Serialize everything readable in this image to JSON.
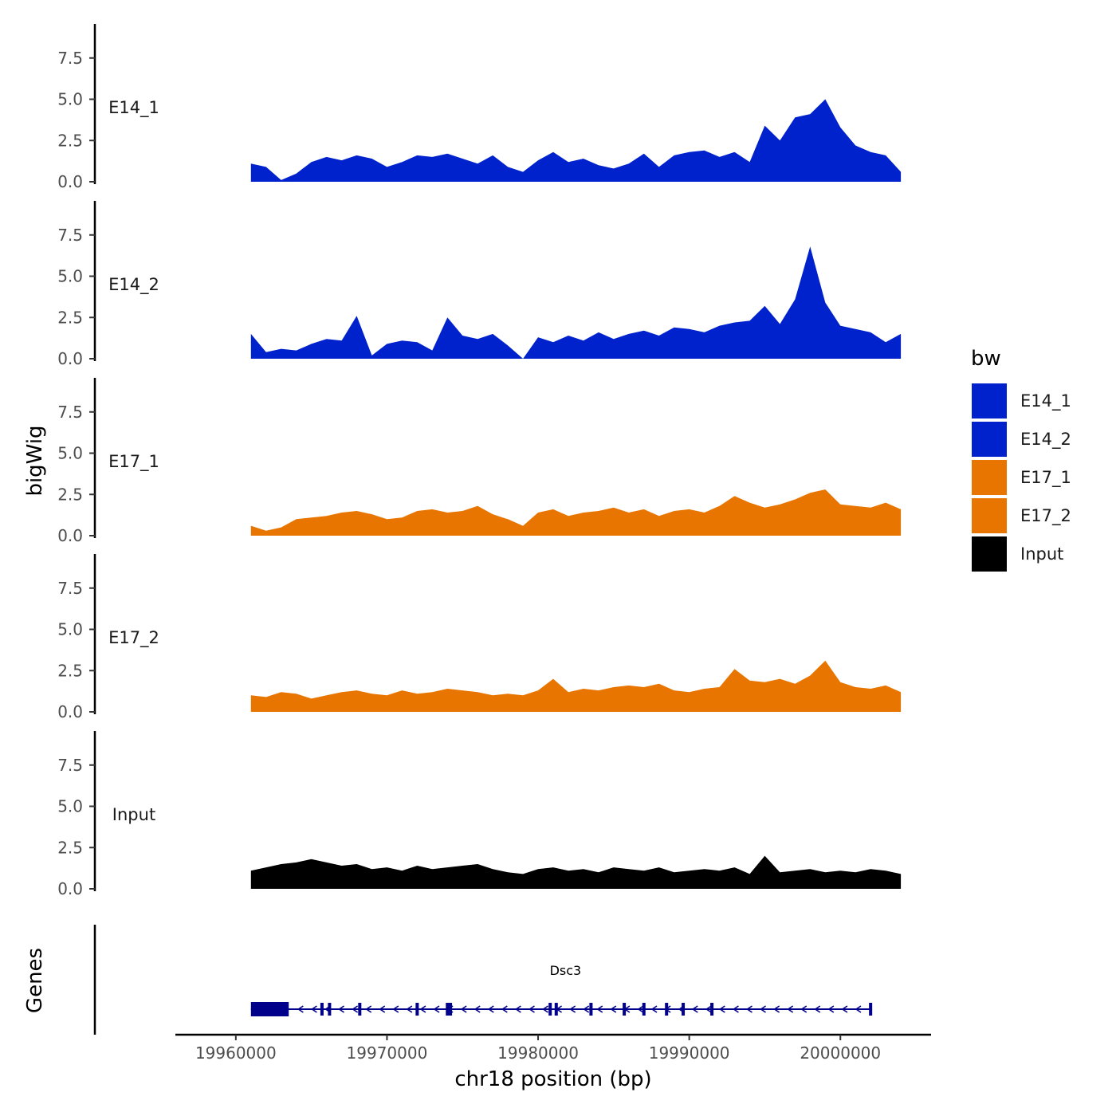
{
  "chart_data": {
    "type": "area",
    "title": "",
    "ylabel": "bigWig",
    "xlabel": "chr18 position (bp)",
    "genes_label": "Genes",
    "xlim": [
      19956000,
      20006000
    ],
    "ylim": [
      0,
      9.5
    ],
    "x_ticks": [
      19960000,
      19970000,
      19980000,
      19990000,
      20000000
    ],
    "x_tick_labels": [
      "19960000",
      "19970000",
      "19980000",
      "19990000",
      "20000000"
    ],
    "y_ticks": [
      0,
      2.5,
      5,
      7.5
    ],
    "y_tick_labels": [
      "0.0",
      "2.5",
      "5.0",
      "7.5"
    ],
    "legend_title": "bw",
    "series": [
      {
        "name": "E14_1",
        "color": "#0022cc",
        "x": [
          19961000,
          19962000,
          19963000,
          19964000,
          19965000,
          19966000,
          19967000,
          19968000,
          19969000,
          19970000,
          19971000,
          19972000,
          19973000,
          19974000,
          19975000,
          19976000,
          19977000,
          19978000,
          19979000,
          19980000,
          19981000,
          19982000,
          19983000,
          19984000,
          19985000,
          19986000,
          19987000,
          19988000,
          19989000,
          19990000,
          19991000,
          19992000,
          19993000,
          19994000,
          19995000,
          19996000,
          19997000,
          19998000,
          19999000,
          20000000,
          20001000,
          20002000,
          20003000,
          20004000
        ],
        "values": [
          1.1,
          0.9,
          0.1,
          0.5,
          1.2,
          1.5,
          1.3,
          1.6,
          1.4,
          0.9,
          1.2,
          1.6,
          1.5,
          1.7,
          1.4,
          1.1,
          1.6,
          0.9,
          0.6,
          1.3,
          1.8,
          1.2,
          1.4,
          1.0,
          0.8,
          1.1,
          1.7,
          0.9,
          1.6,
          1.8,
          1.9,
          1.5,
          1.8,
          1.2,
          3.4,
          2.5,
          3.9,
          4.1,
          5.0,
          3.3,
          2.2,
          1.8,
          1.6,
          0.6
        ]
      },
      {
        "name": "E14_2",
        "color": "#0022cc",
        "x": [
          19961000,
          19962000,
          19963000,
          19964000,
          19965000,
          19966000,
          19967000,
          19968000,
          19969000,
          19970000,
          19971000,
          19972000,
          19973000,
          19974000,
          19975000,
          19976000,
          19977000,
          19978000,
          19979000,
          19980000,
          19981000,
          19982000,
          19983000,
          19984000,
          19985000,
          19986000,
          19987000,
          19988000,
          19989000,
          19990000,
          19991000,
          19992000,
          19993000,
          19994000,
          19995000,
          19996000,
          19997000,
          19998000,
          19999000,
          20000000,
          20001000,
          20002000,
          20003000,
          20004000
        ],
        "values": [
          1.5,
          0.4,
          0.6,
          0.5,
          0.9,
          1.2,
          1.1,
          2.6,
          0.2,
          0.9,
          1.1,
          1.0,
          0.5,
          2.5,
          1.4,
          1.2,
          1.5,
          0.8,
          0.0,
          1.3,
          1.0,
          1.4,
          1.1,
          1.6,
          1.2,
          1.5,
          1.7,
          1.4,
          1.9,
          1.8,
          1.6,
          2.0,
          2.2,
          2.3,
          3.2,
          2.1,
          3.6,
          6.8,
          3.4,
          2.0,
          1.8,
          1.6,
          1.0,
          1.5
        ]
      },
      {
        "name": "E17_1",
        "color": "#e87500",
        "x": [
          19961000,
          19962000,
          19963000,
          19964000,
          19965000,
          19966000,
          19967000,
          19968000,
          19969000,
          19970000,
          19971000,
          19972000,
          19973000,
          19974000,
          19975000,
          19976000,
          19977000,
          19978000,
          19979000,
          19980000,
          19981000,
          19982000,
          19983000,
          19984000,
          19985000,
          19986000,
          19987000,
          19988000,
          19989000,
          19990000,
          19991000,
          19992000,
          19993000,
          19994000,
          19995000,
          19996000,
          19997000,
          19998000,
          19999000,
          20000000,
          20001000,
          20002000,
          20003000,
          20004000
        ],
        "values": [
          0.6,
          0.3,
          0.5,
          1.0,
          1.1,
          1.2,
          1.4,
          1.5,
          1.3,
          1.0,
          1.1,
          1.5,
          1.6,
          1.4,
          1.5,
          1.8,
          1.3,
          1.0,
          0.6,
          1.4,
          1.6,
          1.2,
          1.4,
          1.5,
          1.7,
          1.4,
          1.6,
          1.2,
          1.5,
          1.6,
          1.4,
          1.8,
          2.4,
          2.0,
          1.7,
          1.9,
          2.2,
          2.6,
          2.8,
          1.9,
          1.8,
          1.7,
          2.0,
          1.6
        ]
      },
      {
        "name": "E17_2",
        "color": "#e87500",
        "x": [
          19961000,
          19962000,
          19963000,
          19964000,
          19965000,
          19966000,
          19967000,
          19968000,
          19969000,
          19970000,
          19971000,
          19972000,
          19973000,
          19974000,
          19975000,
          19976000,
          19977000,
          19978000,
          19979000,
          19980000,
          19981000,
          19982000,
          19983000,
          19984000,
          19985000,
          19986000,
          19987000,
          19988000,
          19989000,
          19990000,
          19991000,
          19992000,
          19993000,
          19994000,
          19995000,
          19996000,
          19997000,
          19998000,
          19999000,
          20000000,
          20001000,
          20002000,
          20003000,
          20004000
        ],
        "values": [
          1.0,
          0.9,
          1.2,
          1.1,
          0.8,
          1.0,
          1.2,
          1.3,
          1.1,
          1.0,
          1.3,
          1.1,
          1.2,
          1.4,
          1.3,
          1.2,
          1.0,
          1.1,
          1.0,
          1.3,
          2.0,
          1.2,
          1.4,
          1.3,
          1.5,
          1.6,
          1.5,
          1.7,
          1.3,
          1.2,
          1.4,
          1.5,
          2.6,
          1.9,
          1.8,
          2.0,
          1.7,
          2.2,
          3.1,
          1.8,
          1.5,
          1.4,
          1.6,
          1.2
        ]
      },
      {
        "name": "Input",
        "color": "#000000",
        "x": [
          19961000,
          19962000,
          19963000,
          19964000,
          19965000,
          19966000,
          19967000,
          19968000,
          19969000,
          19970000,
          19971000,
          19972000,
          19973000,
          19974000,
          19975000,
          19976000,
          19977000,
          19978000,
          19979000,
          19980000,
          19981000,
          19982000,
          19983000,
          19984000,
          19985000,
          19986000,
          19987000,
          19988000,
          19989000,
          19990000,
          19991000,
          19992000,
          19993000,
          19994000,
          19995000,
          19996000,
          19997000,
          19998000,
          19999000,
          20000000,
          20001000,
          20002000,
          20003000,
          20004000
        ],
        "values": [
          1.1,
          1.3,
          1.5,
          1.6,
          1.8,
          1.6,
          1.4,
          1.5,
          1.2,
          1.3,
          1.1,
          1.4,
          1.2,
          1.3,
          1.4,
          1.5,
          1.2,
          1.0,
          0.9,
          1.2,
          1.3,
          1.1,
          1.2,
          1.0,
          1.3,
          1.2,
          1.1,
          1.3,
          1.0,
          1.1,
          1.2,
          1.1,
          1.3,
          0.9,
          2.0,
          1.0,
          1.1,
          1.2,
          1.0,
          1.1,
          1.0,
          1.2,
          1.1,
          0.9
        ]
      }
    ],
    "gene": {
      "name": "Dsc3",
      "start": 19961000,
      "end": 20002100,
      "strand": "-",
      "thick_end": 19963500,
      "exons": [
        19965700,
        19966200,
        19968200,
        19972000,
        19974000,
        19974200,
        19980800,
        19981200,
        19983500,
        19985700,
        19987000,
        19988500,
        19989600,
        19991500,
        20002000
      ]
    }
  }
}
